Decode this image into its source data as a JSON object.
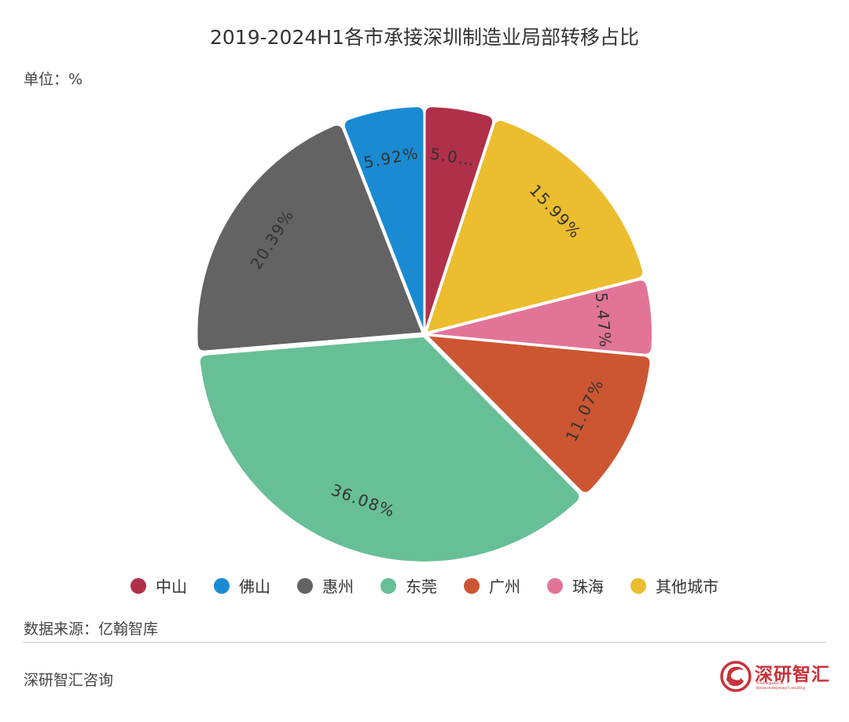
{
  "header": {
    "title": "2019-2024H1各市承接深圳制造业局部转移占比",
    "unit": "单位：%"
  },
  "chart_data": {
    "type": "pie",
    "title": "2019-2024H1各市承接深圳制造业局部转移占比",
    "unit": "%",
    "slices": [
      {
        "name": "中山",
        "value": 5.02,
        "label": "5.0…",
        "color": "#b0304a"
      },
      {
        "name": "其他城市",
        "value": 15.99,
        "label": "15.99%",
        "color": "#ebbd2f"
      },
      {
        "name": "珠海",
        "value": 5.47,
        "label": "5.47%",
        "color": "#e27597"
      },
      {
        "name": "广州",
        "value": 11.07,
        "label": "11.07%",
        "color": "#cc5631"
      },
      {
        "name": "东莞",
        "value": 36.08,
        "label": "36.08%",
        "color": "#67bf95"
      },
      {
        "name": "惠州",
        "value": 20.39,
        "label": "20.39%",
        "color": "#636363"
      },
      {
        "name": "佛山",
        "value": 5.92,
        "label": "5.92%",
        "color": "#1a8bd3"
      }
    ],
    "legend_order": [
      "中山",
      "佛山",
      "惠州",
      "东莞",
      "广州",
      "珠海",
      "其他城市"
    ],
    "legend_position": "bottom"
  },
  "legend": [
    {
      "label": "中山",
      "color": "#b0304a"
    },
    {
      "label": "佛山",
      "color": "#1a8bd3"
    },
    {
      "label": "惠州",
      "color": "#636363"
    },
    {
      "label": "东莞",
      "color": "#67bf95"
    },
    {
      "label": "广州",
      "color": "#cc5631"
    },
    {
      "label": "珠海",
      "color": "#e27597"
    },
    {
      "label": "其他城市",
      "color": "#ebbd2f"
    }
  ],
  "source": "数据来源：亿翰智库",
  "footer": "深研智汇咨询",
  "brand": {
    "name": "深研智汇",
    "tagline": "Wisdomgather & Researchdeepening Consulting",
    "color": "#c8313a"
  }
}
